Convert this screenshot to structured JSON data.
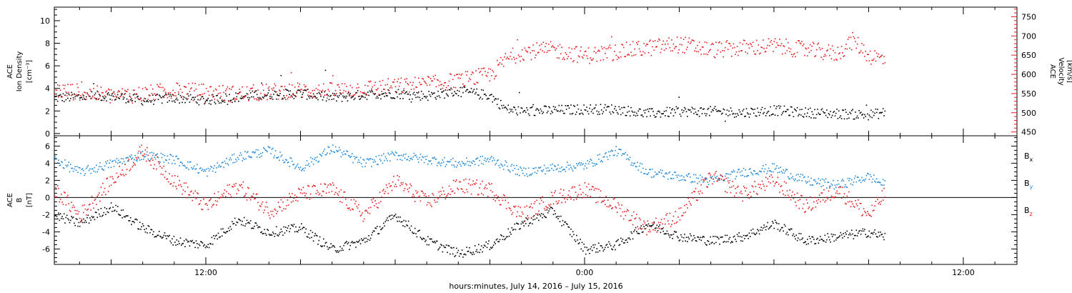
{
  "xlabel": "hours:minutes, July 14, 2016 – July 15, 2016",
  "x_tick_labels": [
    "12:00",
    "0:00",
    "12:00"
  ],
  "chart_data": [
    {
      "type": "scatter",
      "title": "",
      "xlabel": "hours:minutes, July 14, 2016 – July 15, 2016",
      "x_range_hours": [
        7.2,
        37.7
      ],
      "x_ticks": [
        {
          "hour": 12,
          "label": "12:00"
        },
        {
          "hour": 24,
          "label": "0:00"
        },
        {
          "hour": 36,
          "label": "12:00"
        }
      ],
      "ylabel": {
        "line1": "ACE",
        "line2": "Ion Density",
        "unit": "[cm⁻³]"
      },
      "ylim": [
        -0.2,
        11.2
      ],
      "y_ticks": [
        0,
        2,
        4,
        6,
        8,
        10
      ],
      "y2label": {
        "line1": "ACE",
        "line2": "Velocity",
        "unit": "[km/s]"
      },
      "y2lim": [
        440,
        775
      ],
      "y2_ticks": [
        450,
        500,
        550,
        600,
        650,
        700,
        750
      ],
      "data_end_hour": 33.5,
      "series": [
        {
          "key": "density",
          "axis": "left",
          "color": "#000000",
          "anchors_x": [
            7.2,
            8.0,
            9.0,
            10.0,
            11.0,
            12.0,
            13.0,
            14.0,
            15.0,
            16.0,
            17.0,
            18.0,
            19.0,
            20.0,
            21.0,
            21.5,
            22.0,
            23.0,
            24.0,
            25.0,
            26.0,
            27.0,
            28.0,
            29.0,
            30.0,
            31.0,
            32.0,
            33.0,
            33.5
          ],
          "anchors_y": [
            3.2,
            3.3,
            3.4,
            3.0,
            3.2,
            3.0,
            3.3,
            3.5,
            3.6,
            3.2,
            3.5,
            3.6,
            3.4,
            3.8,
            3.4,
            2.2,
            2.0,
            2.1,
            2.2,
            2.2,
            1.8,
            2.0,
            2.0,
            1.9,
            2.1,
            1.9,
            1.8,
            1.7,
            1.9
          ]
        },
        {
          "key": "velocity",
          "axis": "right",
          "color": "#e41a1c",
          "anchors_x": [
            7.2,
            8.0,
            9.0,
            10.0,
            11.0,
            12.0,
            13.0,
            14.0,
            15.0,
            16.0,
            17.0,
            18.0,
            19.0,
            20.0,
            21.0,
            21.5,
            22.0,
            23.0,
            24.0,
            25.0,
            26.0,
            27.0,
            28.0,
            29.0,
            30.0,
            31.0,
            32.0,
            32.5,
            33.0,
            33.5
          ],
          "anchors_y": [
            560,
            555,
            545,
            550,
            560,
            555,
            550,
            555,
            560,
            558,
            565,
            570,
            575,
            585,
            600,
            640,
            660,
            665,
            650,
            660,
            670,
            680,
            665,
            670,
            675,
            665,
            655,
            690,
            650,
            640
          ]
        }
      ]
    },
    {
      "type": "scatter",
      "title": "",
      "ylabel": {
        "line1": "ACE",
        "line2": "B",
        "unit": "[nT]"
      },
      "ylim": [
        -7.8,
        7.2
      ],
      "y_ticks": [
        -6,
        -4,
        -2,
        0,
        2,
        4,
        6
      ],
      "zero_line": true,
      "legend_position": "right",
      "data_end_hour": 33.5,
      "series": [
        {
          "key": "bx",
          "name": "Bx",
          "color": "#000000",
          "anchors_x": [
            7.2,
            8.0,
            9.0,
            10.0,
            11.0,
            12.0,
            13.0,
            14.0,
            15.0,
            16.0,
            17.0,
            18.0,
            19.0,
            20.0,
            21.0,
            22.0,
            23.0,
            24.0,
            25.0,
            26.0,
            27.0,
            28.0,
            29.0,
            30.0,
            31.0,
            32.0,
            33.0,
            33.5
          ],
          "anchors_y": [
            -2.0,
            -3.0,
            -1.0,
            -3.5,
            -5.0,
            -5.5,
            -2.5,
            -4.0,
            -3.5,
            -6.0,
            -5.0,
            -2.0,
            -5.0,
            -6.5,
            -5.5,
            -3.0,
            -1.5,
            -6.0,
            -5.5,
            -3.0,
            -4.5,
            -5.0,
            -4.5,
            -3.0,
            -5.0,
            -4.5,
            -4.0,
            -4.5
          ]
        },
        {
          "key": "by",
          "name": "By",
          "color": "#1e88d6",
          "anchors_x": [
            7.2,
            8.0,
            9.0,
            10.0,
            11.0,
            12.0,
            13.0,
            14.0,
            15.0,
            16.0,
            17.0,
            18.0,
            19.0,
            20.0,
            21.0,
            22.0,
            23.0,
            24.0,
            25.0,
            26.0,
            27.0,
            28.0,
            29.0,
            30.0,
            31.0,
            32.0,
            33.0,
            33.5
          ],
          "anchors_y": [
            4.5,
            3.0,
            4.0,
            5.0,
            4.5,
            3.0,
            4.8,
            5.5,
            3.5,
            5.8,
            4.0,
            5.0,
            4.5,
            4.0,
            4.5,
            3.0,
            3.5,
            3.8,
            5.5,
            3.0,
            2.5,
            2.0,
            3.0,
            3.5,
            2.0,
            1.5,
            2.5,
            1.5
          ]
        },
        {
          "key": "bz",
          "name": "Bz",
          "color": "#e41a1c",
          "anchors_x": [
            7.2,
            8.0,
            9.0,
            10.0,
            11.0,
            12.0,
            13.0,
            14.0,
            15.0,
            16.0,
            17.0,
            18.0,
            19.0,
            20.0,
            21.0,
            22.0,
            23.0,
            24.0,
            25.0,
            26.0,
            27.0,
            28.0,
            29.0,
            30.0,
            31.0,
            32.0,
            33.0,
            33.5
          ],
          "anchors_y": [
            1.0,
            -2.0,
            2.0,
            5.5,
            2.0,
            -1.0,
            1.5,
            -1.5,
            0.5,
            1.0,
            -2.0,
            2.0,
            -0.5,
            1.5,
            1.0,
            -2.0,
            0.0,
            1.0,
            -1.0,
            -3.5,
            -2.0,
            2.5,
            0.5,
            2.0,
            -1.0,
            1.0,
            -2.0,
            0.5
          ]
        }
      ]
    }
  ]
}
